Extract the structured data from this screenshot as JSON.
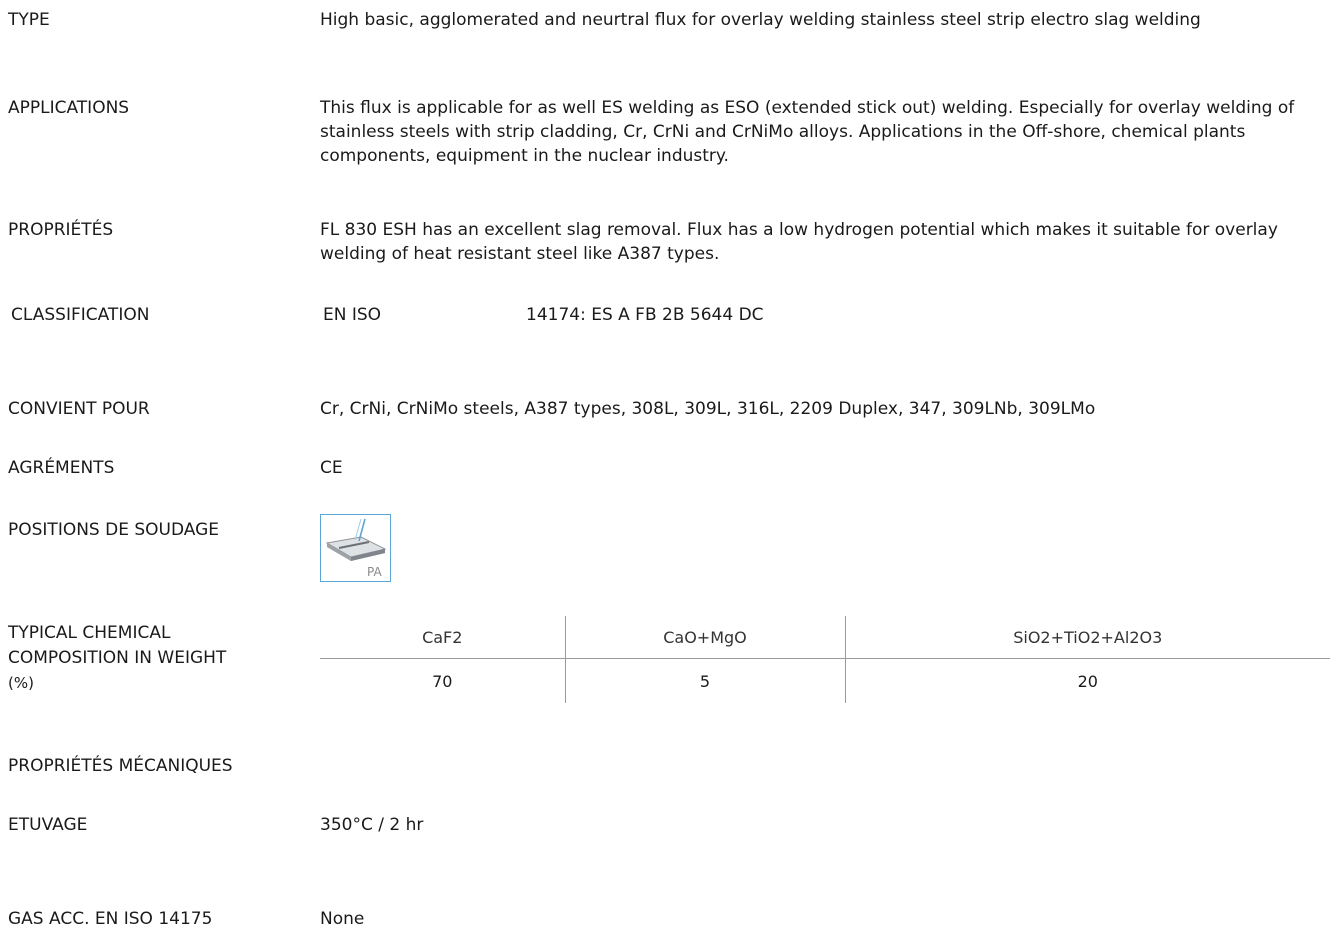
{
  "rows": {
    "type": {
      "label": "TYPE",
      "value": "High basic, agglomerated and neurtral flux for overlay welding stainless steel strip electro slag welding"
    },
    "applications": {
      "label": "APPLICATIONS",
      "value": "This flux is applicable for as well ES welding as ESO (extended stick out) welding. Especially for overlay welding of stainless steels with strip cladding, Cr, CrNi and CrNiMo alloys. Applications in the Off-shore, chemical plants components, equipment in the nuclear industry."
    },
    "proprietes": {
      "label": "PROPRIÉTÉS",
      "value": "FL 830 ESH has an excellent slag removal. Flux has a low hydrogen potential which makes it suitable for overlay welding of heat resistant steel like A387 types."
    },
    "classification": {
      "label": "CLASSIFICATION",
      "standard": "EN ISO",
      "value": "14174: ES A FB 2B 5644 DC"
    },
    "convient": {
      "label": "CONVIENT POUR",
      "value": "Cr, CrNi, CrNiMo steels, A387 types, 308L, 309L, 316L, 2209 Duplex, 347, 309LNb, 309LMo"
    },
    "agrements": {
      "label": "AGRÉMENTS",
      "value": "CE"
    },
    "positions": {
      "label": "POSITIONS DE SOUDAGE",
      "icon": "flat-welding-position-pa-icon",
      "icon_label": "PA"
    },
    "chemical": {
      "label_lines": [
        "TYPICAL CHEMICAL",
        "COMPOSITION IN WEIGHT",
        "(%)"
      ],
      "headers": [
        "CaF2",
        "CaO+MgO",
        "SiO2+TiO2+Al2O3"
      ],
      "values": [
        "70",
        "5",
        "20"
      ]
    },
    "mecaniques": {
      "label": "PROPRIÉTÉS MÉCANIQUES"
    },
    "etuvage": {
      "label": "ETUVAGE",
      "value": "350°C / 2 hr"
    },
    "gas": {
      "label": "GAS ACC. EN ISO 14175",
      "value": "None"
    }
  },
  "colors": {
    "text": "#1a1a1a",
    "icon_border": "#5aa6d8",
    "divider": "#9a9a9a"
  }
}
